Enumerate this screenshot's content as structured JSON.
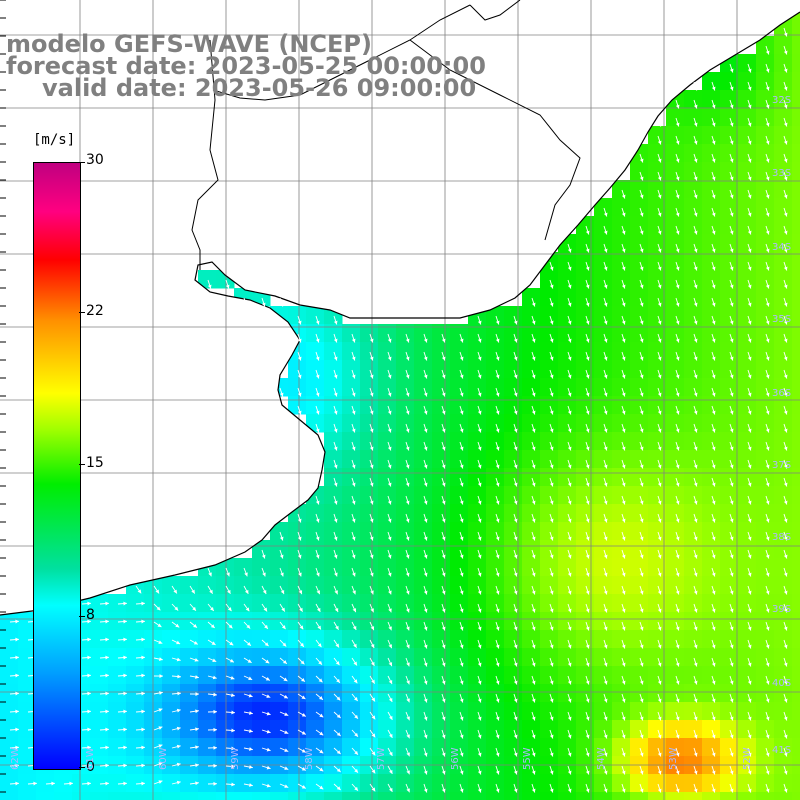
{
  "title": {
    "model": "modelo GEFS-WAVE (NCEP)",
    "forecast": "forecast date: 2023-05-25 00:00:00",
    "valid": "valid date: 2023-05-26 09:00:00"
  },
  "colorbar": {
    "unit": "[m/s]",
    "ticks": [
      "30",
      "22",
      "15",
      "8",
      "0"
    ],
    "colors": [
      "#0000ff",
      "#00a0ff",
      "#00ffff",
      "#00ee00",
      "#ffff00",
      "#ff9000",
      "#ff0000",
      "#c00080"
    ]
  },
  "map": {
    "land_color": "#ffffff",
    "grid_color": "#808080",
    "lat_labels": [
      "32S",
      "33S",
      "34S",
      "35S",
      "36S",
      "37S",
      "38S",
      "39S",
      "40S",
      "41S"
    ],
    "lon_labels": [
      "62W",
      "61W",
      "60W",
      "59W",
      "58W",
      "57W",
      "56W",
      "55W",
      "54W",
      "53W",
      "52W"
    ]
  }
}
